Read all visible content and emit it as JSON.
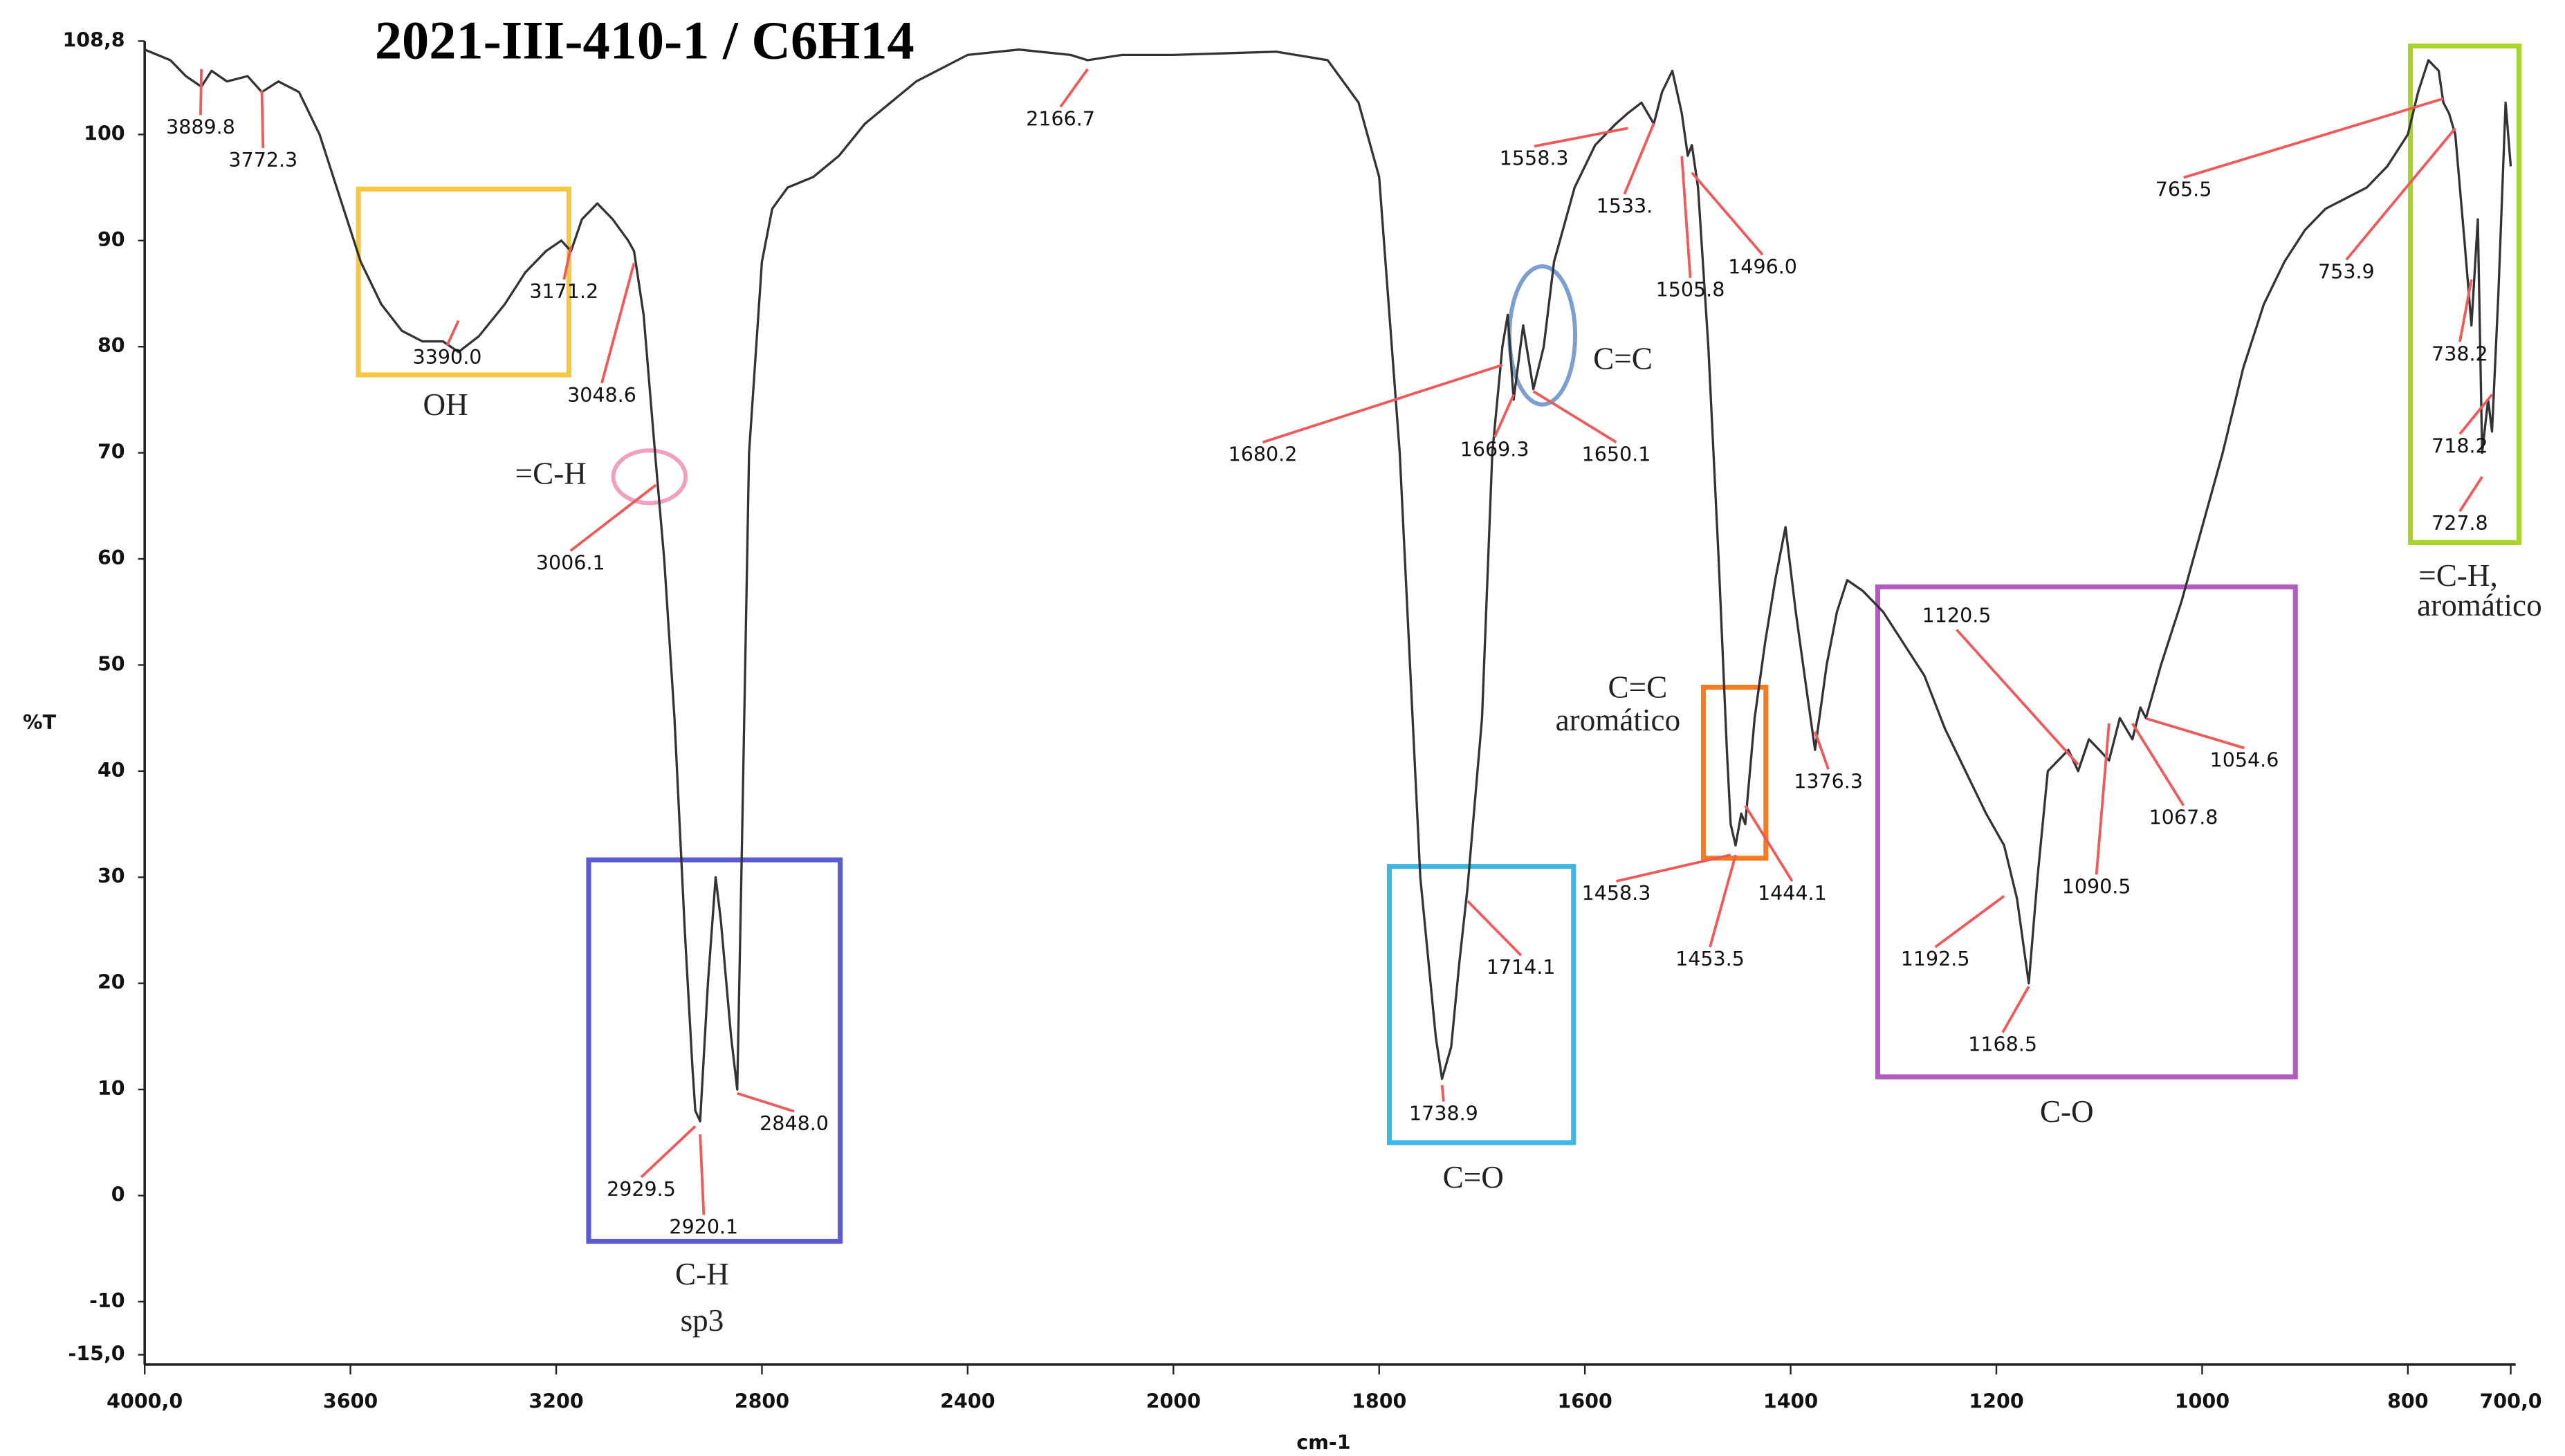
{
  "chart_data": {
    "type": "line",
    "title": "2021-III-410-1 / C6H14",
    "ylabel": "%T",
    "xlabel": "cm-1",
    "xlim": [
      4000,
      700
    ],
    "ylim": [
      -15,
      108.8
    ],
    "xscale": {
      "break": 2000,
      "factor": 2
    },
    "xticks": [
      {
        "value": 4000,
        "label": "4000,0"
      },
      3600,
      3200,
      2800,
      2400,
      2000,
      1800,
      1600,
      1400,
      1200,
      1000,
      800,
      {
        "value": 700,
        "label": "700,0"
      }
    ],
    "yticks": [
      {
        "value": 108.8,
        "label": "108,8"
      },
      100,
      90,
      80,
      70,
      60,
      50,
      40,
      30,
      20,
      10,
      0,
      -10,
      {
        "value": -15,
        "label": "-15,0"
      }
    ],
    "grid": false,
    "x": [
      4000,
      3950,
      3920,
      3889.8,
      3870,
      3840,
      3800,
      3772.3,
      3740,
      3700,
      3660,
      3620,
      3580,
      3540,
      3500,
      3460,
      3420,
      3390,
      3350,
      3300,
      3260,
      3220,
      3190,
      3171.2,
      3150,
      3120,
      3090,
      3060,
      3048.6,
      3030,
      3006.1,
      2990,
      2970,
      2950,
      2935,
      2929.5,
      2920.1,
      2905,
      2890,
      2880,
      2860,
      2848,
      2840,
      2825,
      2800,
      2780,
      2750,
      2700,
      2650,
      2600,
      2500,
      2400,
      2300,
      2200,
      2166.7,
      2100,
      2000,
      1900,
      1850,
      1820,
      1800,
      1780,
      1760,
      1745,
      1738.9,
      1730,
      1722,
      1714.1,
      1700,
      1690,
      1680.2,
      1675,
      1669.3,
      1660,
      1650.1,
      1640,
      1630,
      1610,
      1590,
      1570,
      1558.3,
      1545,
      1533,
      1525,
      1515,
      1505.8,
      1500,
      1496,
      1490,
      1480,
      1470,
      1462,
      1458.3,
      1453.5,
      1448,
      1444.1,
      1435,
      1425,
      1415,
      1405,
      1395,
      1385,
      1376.3,
      1365,
      1355,
      1345,
      1330,
      1310,
      1290,
      1270,
      1250,
      1230,
      1210,
      1192.5,
      1180,
      1168.5,
      1160,
      1150,
      1140,
      1130,
      1120.5,
      1110,
      1100,
      1090.5,
      1080,
      1067.8,
      1060,
      1054.6,
      1040,
      1020,
      1000,
      980,
      960,
      940,
      920,
      900,
      880,
      860,
      840,
      820,
      800,
      790,
      780,
      770,
      765.5,
      760,
      753.9,
      745,
      738.2,
      732,
      727.8,
      722,
      718.2,
      712,
      705,
      700
    ],
    "series": [
      {
        "color": "#333333",
        "values": [
          108,
          107,
          105.5,
          104.5,
          106,
          105,
          105.5,
          104,
          105,
          104,
          100,
          94,
          88,
          84,
          81.5,
          80.5,
          80.5,
          79.5,
          81,
          84,
          87,
          89,
          90,
          89,
          92,
          93.5,
          92,
          90,
          89,
          83,
          69,
          60,
          45,
          25,
          12,
          8,
          7,
          20,
          30,
          26,
          15,
          10,
          30,
          70,
          88,
          93,
          95,
          96,
          98,
          101,
          105,
          107.5,
          108,
          107.5,
          107,
          107.5,
          107.5,
          107.8,
          107,
          103,
          96,
          70,
          30,
          15,
          11,
          14,
          22,
          29,
          45,
          70,
          80,
          83,
          75,
          82,
          76,
          80,
          88,
          95,
          99,
          101,
          102,
          103,
          101,
          104,
          106,
          102,
          98,
          99,
          95,
          80,
          60,
          42,
          35,
          33,
          36,
          35,
          45,
          52,
          58,
          63,
          55,
          48,
          42,
          50,
          55,
          58,
          57,
          55,
          52,
          49,
          44,
          40,
          36,
          33,
          28,
          20,
          30,
          40,
          41,
          42,
          40,
          43,
          42,
          41,
          45,
          43,
          46,
          45,
          50,
          56,
          63,
          70,
          78,
          84,
          88,
          91,
          93,
          94,
          95,
          97,
          100,
          104,
          107,
          106,
          103,
          102,
          100,
          90,
          82,
          92,
          70,
          75,
          72,
          85,
          103,
          97
        ]
      }
    ],
    "peaks": [
      {
        "value": 3889.8,
        "label": "3889.8"
      },
      {
        "value": 3772.3,
        "label": "3772.3"
      },
      {
        "value": 3390,
        "label": "3390.0"
      },
      {
        "value": 3171.2,
        "label": "3171.2"
      },
      {
        "value": 3048.6,
        "label": "3048.6"
      },
      {
        "value": 3006.1,
        "label": "3006.1"
      },
      {
        "value": 2929.5,
        "label": "2929.5"
      },
      {
        "value": 2920.1,
        "label": "2920.1"
      },
      {
        "value": 2848,
        "label": "2848.0"
      },
      {
        "value": 2166.7,
        "label": "2166.7"
      },
      {
        "value": 1738.9,
        "label": "1738.9"
      },
      {
        "value": 1714.1,
        "label": "1714.1"
      },
      {
        "value": 1680.2,
        "label": "1680.2"
      },
      {
        "value": 1669.3,
        "label": "1669.3"
      },
      {
        "value": 1650.1,
        "label": "1650.1"
      },
      {
        "value": 1558.3,
        "label": "1558.3"
      },
      {
        "value": 1533,
        "label": "1533."
      },
      {
        "value": 1505.8,
        "label": "1505.8"
      },
      {
        "value": 1496,
        "label": "1496.0"
      },
      {
        "value": 1458.3,
        "label": "1458.3"
      },
      {
        "value": 1453.5,
        "label": "1453.5"
      },
      {
        "value": 1444.1,
        "label": "1444.1"
      },
      {
        "value": 1376.3,
        "label": "1376.3"
      },
      {
        "value": 1192.5,
        "label": "1192.5"
      },
      {
        "value": 1168.5,
        "label": "1168.5"
      },
      {
        "value": 1120.5,
        "label": "1120.5"
      },
      {
        "value": 1090.5,
        "label": "1090.5"
      },
      {
        "value": 1067.8,
        "label": "1067.8"
      },
      {
        "value": 1054.6,
        "label": "1054.6"
      },
      {
        "value": 765.5,
        "label": "765.5"
      },
      {
        "value": 753.9,
        "label": "753.9"
      },
      {
        "value": 738.2,
        "label": "738.2"
      },
      {
        "value": 718.2,
        "label": "718.2"
      },
      {
        "value": 727.8,
        "label": "727.8"
      }
    ],
    "annotations": [
      "OH",
      "C-H",
      "sp3",
      "=C-H",
      "C=C",
      "C=O",
      "C=C",
      "aromático",
      "C-O",
      "=C-H,",
      "aromático"
    ]
  }
}
